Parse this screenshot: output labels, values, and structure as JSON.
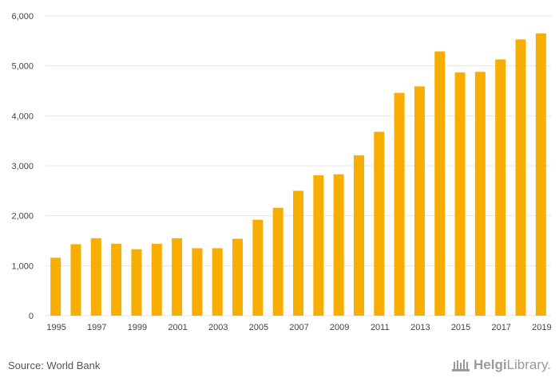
{
  "chart_data": {
    "type": "bar",
    "categories": [
      "1995",
      "1996",
      "1997",
      "1998",
      "1999",
      "2000",
      "2001",
      "2002",
      "2003",
      "2004",
      "2005",
      "2006",
      "2007",
      "2008",
      "2009",
      "2010",
      "2011",
      "2012",
      "2013",
      "2014",
      "2015",
      "2016",
      "2017",
      "2018",
      "2019"
    ],
    "values": [
      1160,
      1430,
      1550,
      1440,
      1330,
      1440,
      1550,
      1350,
      1350,
      1540,
      1920,
      2160,
      2500,
      2810,
      2830,
      3210,
      3680,
      4460,
      4590,
      5290,
      4870,
      4880,
      5130,
      5530,
      5650
    ],
    "x_tick_labels": [
      "1995",
      "1997",
      "1999",
      "2001",
      "2003",
      "2005",
      "2007",
      "2009",
      "2011",
      "2013",
      "2015",
      "2017",
      "2019"
    ],
    "y_ticks": [
      0,
      1000,
      2000,
      3000,
      4000,
      5000,
      6000
    ],
    "y_tick_labels": [
      "0",
      "1,000",
      "2,000",
      "3,000",
      "4,000",
      "5,000",
      "6,000"
    ],
    "ylim": [
      0,
      6000
    ],
    "title": "",
    "xlabel": "",
    "ylabel": "",
    "grid": true,
    "bar_color": "#f7ae00",
    "grid_color": "#e6e6e6"
  },
  "footer": {
    "source": "Source: World Bank",
    "logo_part1": "Helgi",
    "logo_part2": "Library."
  }
}
